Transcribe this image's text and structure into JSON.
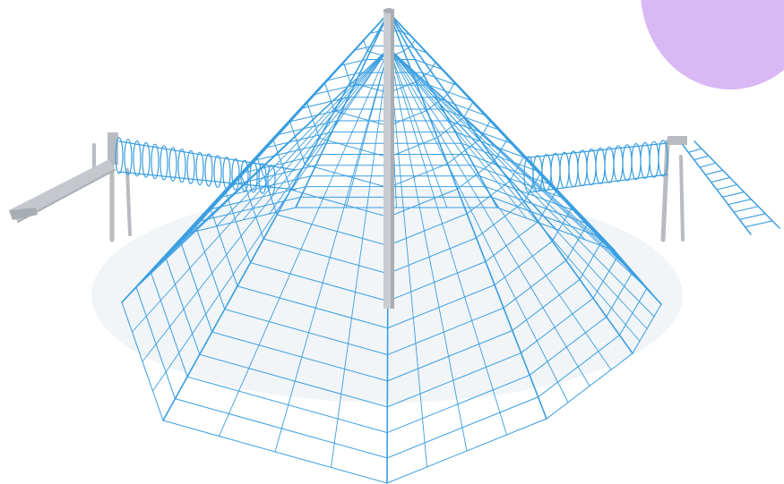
{
  "scene": {
    "subject": "",
    "colors": {
      "net": "#3a9ee0",
      "mast": "#c9cdd1",
      "mast_shade": "#a9aeb3",
      "post": "#b8bcc0",
      "slide": "#c4c8cc",
      "shadow": "#eef2f6",
      "corner_blob": "#d9b8f5",
      "background": "#ffffff"
    }
  }
}
